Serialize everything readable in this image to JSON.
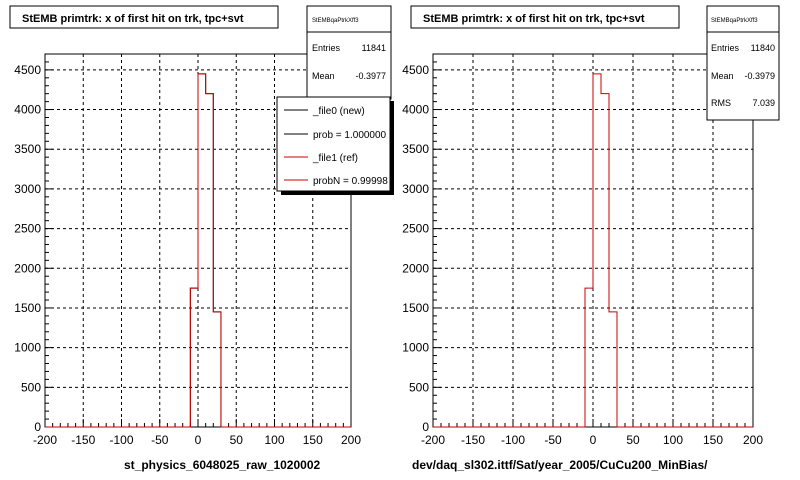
{
  "chart_data": [
    {
      "type": "line",
      "title": "StEMB primtrk: x of first hit on trk, tpc+svt",
      "xlabel": "st_physics_6048025_raw_1020002",
      "ylabel": "",
      "xlim": [
        -200,
        200
      ],
      "ylim": [
        0,
        4700
      ],
      "x_ticks": [
        "-200",
        "-150",
        "-100",
        "-50",
        "0",
        "50",
        "100",
        "150",
        "200"
      ],
      "y_ticks": [
        "0",
        "500",
        "1000",
        "1500",
        "2000",
        "2500",
        "3000",
        "3500",
        "4000",
        "4500"
      ],
      "grid": true,
      "bin_edges": [
        -200,
        -190,
        -180,
        -170,
        -160,
        -150,
        -140,
        -130,
        -120,
        -110,
        -100,
        -90,
        -80,
        -70,
        -60,
        -50,
        -40,
        -30,
        -20,
        -10,
        0,
        10,
        20,
        30,
        40,
        50,
        60,
        70,
        80,
        90,
        100,
        110,
        120,
        130,
        140,
        150,
        160,
        170,
        180,
        190,
        200
      ],
      "series": [
        {
          "name": "_file0 (new)",
          "color": "#000000",
          "values": [
            0,
            0,
            0,
            0,
            0,
            0,
            0,
            0,
            0,
            0,
            0,
            0,
            0,
            0,
            0,
            0,
            0,
            0,
            0,
            1750,
            4450,
            4200,
            1450,
            0,
            0,
            0,
            0,
            0,
            0,
            0,
            0,
            0,
            0,
            0,
            0,
            0,
            0,
            0,
            0,
            0
          ]
        },
        {
          "name": "_file1 (ref)",
          "color": "#cc0000",
          "values": [
            0,
            0,
            0,
            0,
            0,
            0,
            0,
            0,
            0,
            0,
            0,
            0,
            0,
            0,
            0,
            0,
            0,
            0,
            0,
            1750,
            4450,
            4200,
            1450,
            0,
            0,
            0,
            0,
            0,
            0,
            0,
            0,
            0,
            0,
            0,
            0,
            0,
            0,
            0,
            0,
            0
          ]
        }
      ],
      "stats": {
        "title": "StEMBqaPtrkXff3",
        "entries_label": "Entries",
        "entries": "11841",
        "mean_label": "Mean",
        "mean": "-0.3977"
      },
      "legend": {
        "placement": "top-right",
        "entries": [
          "_file0 (new)",
          "prob = 1.000000",
          "_file1 (ref)",
          "probN = 0.99998"
        ]
      }
    },
    {
      "type": "line",
      "title": "StEMB primtrk: x of first hit on trk, tpc+svt",
      "xlabel": "dev/daq_sl302.ittf/Sat/year_2005/CuCu200_MinBias/",
      "ylabel": "",
      "xlim": [
        -200,
        200
      ],
      "ylim": [
        0,
        4700
      ],
      "x_ticks": [
        "-200",
        "-150",
        "-100",
        "-50",
        "0",
        "50",
        "100",
        "150",
        "200"
      ],
      "y_ticks": [
        "0",
        "500",
        "1000",
        "1500",
        "2000",
        "2500",
        "3000",
        "3500",
        "4000",
        "4500"
      ],
      "grid": true,
      "bin_edges": [
        -200,
        -190,
        -180,
        -170,
        -160,
        -150,
        -140,
        -130,
        -120,
        -110,
        -100,
        -90,
        -80,
        -70,
        -60,
        -50,
        -40,
        -30,
        -20,
        -10,
        0,
        10,
        20,
        30,
        40,
        50,
        60,
        70,
        80,
        90,
        100,
        110,
        120,
        130,
        140,
        150,
        160,
        170,
        180,
        190,
        200
      ],
      "series": [
        {
          "name": "",
          "color": "#cc0000",
          "values": [
            0,
            0,
            0,
            0,
            0,
            0,
            0,
            0,
            0,
            0,
            0,
            0,
            0,
            0,
            0,
            0,
            0,
            0,
            0,
            1750,
            4450,
            4200,
            1450,
            0,
            0,
            0,
            0,
            0,
            0,
            0,
            0,
            0,
            0,
            0,
            0,
            0,
            0,
            0,
            0,
            0
          ]
        }
      ],
      "stats": {
        "title": "StEMBqaPtrkXff3",
        "entries_label": "Entries",
        "entries": "11840",
        "mean_label": "Mean",
        "mean": "-0.3979",
        "rms_label": "RMS",
        "rms": "7.039"
      }
    }
  ]
}
